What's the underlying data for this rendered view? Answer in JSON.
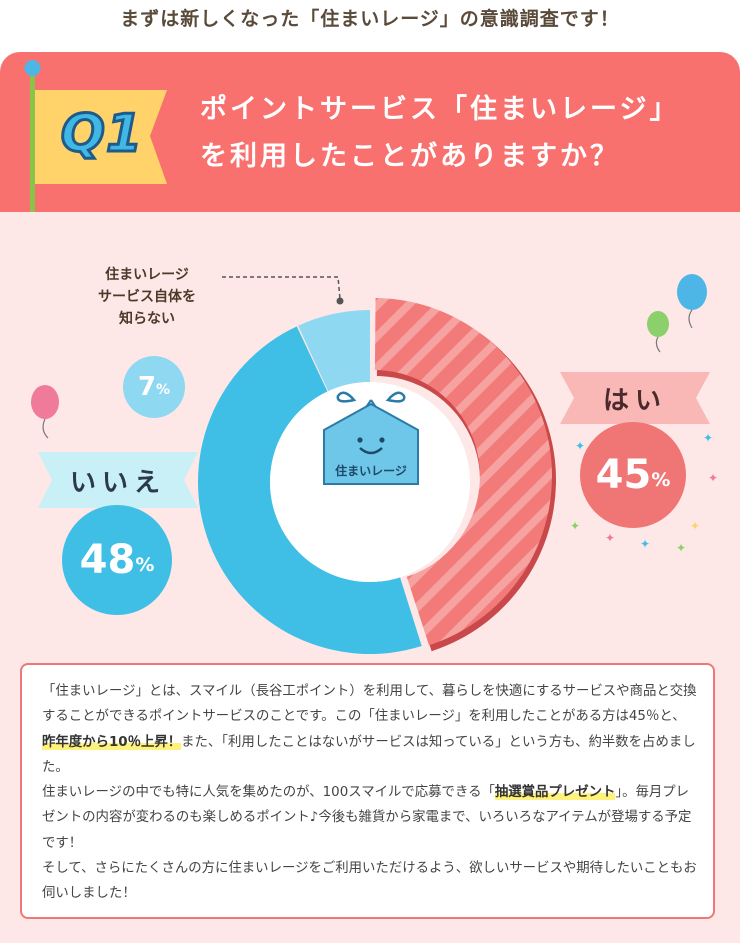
{
  "heading": "まずは新しくなった「住まいレージ」の意識調査です！",
  "question": {
    "badge": "Q1",
    "line1": "ポイントサービス「住まいレージ」",
    "line2": "を利用したことがありますか？"
  },
  "center_icon": {
    "label": "住まいレージ",
    "icon": "smiling-tag-bag-icon"
  },
  "chart_data": {
    "type": "pie",
    "style": "donut",
    "categories": [
      "はい",
      "いいえ",
      "住まいレージサービス自体を知らない"
    ],
    "values": [
      45,
      48,
      7
    ],
    "unit": "%",
    "colors": [
      "#f07676",
      "#3fbfe6",
      "#8fd8f2"
    ],
    "labels": {
      "yes": {
        "label": "はい",
        "value": "45",
        "unit": "%"
      },
      "no": {
        "label": "いいえ",
        "value": "48",
        "unit": "%"
      },
      "unknown": {
        "label_lines": [
          "住まいレージ",
          "サービス自体を",
          "知らない"
        ],
        "value": "7",
        "unit": "%"
      }
    }
  },
  "body_text": {
    "p1_before": "「住まいレージ」とは、スマイル（長谷工ポイント）を利用して、暮らしを快適にするサービスや商品と交換することができるポイントサービスのことです。この「住まいレージ」を利用したことがある方は45％と、",
    "p1_highlight": "昨年度から10％上昇！",
    "p1_after": "また、「利用したことはないがサービスは知っている」という方も、約半数を占めました。",
    "p2_before": "住まいレージの中でも特に人気を集めたのが、100スマイルで応募できる「",
    "p2_highlight": "抽選賞品プレゼント",
    "p2_after": "」。毎月プレゼントの内容が変わるのも楽しめるポイント♪今後も雑貨から家電まで、いろいろなアイテムが登場する予定です！",
    "p3": "そして、さらにたくさんの方に住まいレージをご利用いただけるよう、欲しいサービスや期待したいこともお伺いしました！"
  }
}
